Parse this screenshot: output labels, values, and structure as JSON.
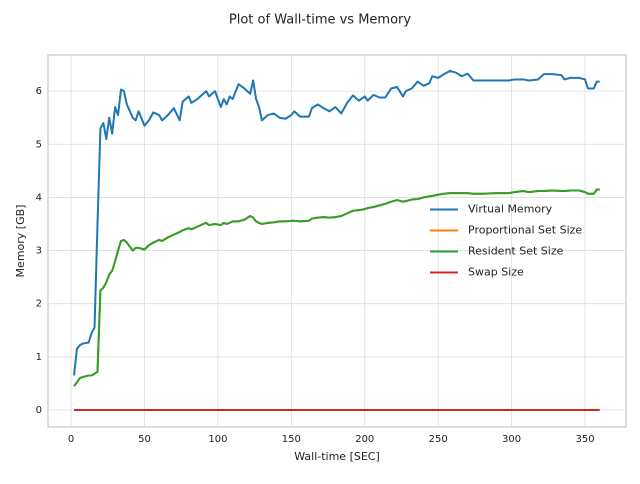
{
  "chart_data": {
    "type": "line",
    "title": "Plot of Wall-time vs Memory",
    "x_label": "Wall-time [SEC]",
    "y_label": "Memory [GB]",
    "x": [
      2,
      4,
      6,
      8,
      12,
      14,
      16,
      18,
      20,
      22,
      24,
      26,
      28,
      30,
      32,
      34,
      36,
      38,
      42,
      44,
      46,
      50,
      53,
      56,
      60,
      62,
      66,
      70,
      74,
      76,
      80,
      82,
      86,
      90,
      92,
      94,
      98,
      102,
      104,
      106,
      108,
      110,
      114,
      118,
      122,
      124,
      126,
      128,
      130,
      134,
      138,
      142,
      146,
      150,
      152,
      156,
      162,
      164,
      168,
      172,
      176,
      180,
      184,
      188,
      192,
      196,
      200,
      202,
      206,
      210,
      214,
      218,
      222,
      226,
      228,
      232,
      236,
      240,
      244,
      246,
      250,
      254,
      258,
      262,
      266,
      270,
      274,
      280,
      290,
      298,
      302,
      308,
      312,
      318,
      322,
      328,
      334,
      336,
      340,
      346,
      350,
      352,
      356,
      358,
      360
    ],
    "series": [
      {
        "name": "Virtual Memory",
        "color": "#1f77b4",
        "values": [
          0.65,
          1.15,
          1.22,
          1.25,
          1.27,
          1.45,
          1.55,
          3.5,
          5.3,
          5.4,
          5.1,
          5.5,
          5.2,
          5.7,
          5.55,
          6.03,
          6.0,
          5.75,
          5.5,
          5.45,
          5.62,
          5.35,
          5.45,
          5.6,
          5.55,
          5.45,
          5.55,
          5.68,
          5.45,
          5.8,
          5.9,
          5.78,
          5.85,
          5.95,
          6.0,
          5.9,
          6.0,
          5.7,
          5.85,
          5.75,
          5.9,
          5.85,
          6.13,
          6.05,
          5.95,
          6.2,
          5.85,
          5.7,
          5.45,
          5.55,
          5.58,
          5.5,
          5.48,
          5.55,
          5.62,
          5.52,
          5.52,
          5.68,
          5.75,
          5.68,
          5.62,
          5.7,
          5.58,
          5.78,
          5.92,
          5.82,
          5.9,
          5.82,
          5.93,
          5.88,
          5.88,
          6.05,
          6.08,
          5.9,
          6.0,
          6.05,
          6.18,
          6.1,
          6.15,
          6.28,
          6.25,
          6.32,
          6.38,
          6.35,
          6.28,
          6.33,
          6.2,
          6.2,
          6.2,
          6.2,
          6.22,
          6.22,
          6.2,
          6.22,
          6.32,
          6.32,
          6.3,
          6.22,
          6.25,
          6.25,
          6.22,
          6.05,
          6.05,
          6.18,
          6.18
        ]
      },
      {
        "name": "Proportional Set Size",
        "color": "#ff7f0e",
        "values": [
          0.45,
          0.52,
          0.6,
          0.62,
          0.65,
          0.65,
          0.68,
          0.72,
          2.25,
          2.3,
          2.4,
          2.55,
          2.62,
          2.8,
          3.0,
          3.18,
          3.2,
          3.15,
          3.0,
          3.05,
          3.05,
          3.02,
          3.1,
          3.15,
          3.2,
          3.18,
          3.25,
          3.3,
          3.35,
          3.38,
          3.42,
          3.4,
          3.45,
          3.5,
          3.52,
          3.48,
          3.5,
          3.48,
          3.52,
          3.5,
          3.52,
          3.55,
          3.55,
          3.58,
          3.65,
          3.62,
          3.55,
          3.52,
          3.5,
          3.52,
          3.53,
          3.55,
          3.55,
          3.56,
          3.56,
          3.55,
          3.56,
          3.6,
          3.62,
          3.63,
          3.62,
          3.63,
          3.65,
          3.7,
          3.75,
          3.76,
          3.78,
          3.8,
          3.82,
          3.85,
          3.88,
          3.92,
          3.95,
          3.92,
          3.93,
          3.96,
          3.97,
          4.0,
          4.02,
          4.03,
          4.05,
          4.07,
          4.08,
          4.08,
          4.08,
          4.08,
          4.07,
          4.07,
          4.08,
          4.08,
          4.1,
          4.12,
          4.1,
          4.12,
          4.12,
          4.13,
          4.12,
          4.12,
          4.13,
          4.13,
          4.1,
          4.07,
          4.07,
          4.15,
          4.15
        ]
      },
      {
        "name": "Resident Set Size",
        "color": "#2ca02c",
        "values": [
          0.45,
          0.52,
          0.6,
          0.62,
          0.65,
          0.65,
          0.68,
          0.72,
          2.25,
          2.3,
          2.4,
          2.55,
          2.62,
          2.8,
          3.0,
          3.18,
          3.2,
          3.15,
          3.0,
          3.05,
          3.05,
          3.02,
          3.1,
          3.15,
          3.2,
          3.18,
          3.25,
          3.3,
          3.35,
          3.38,
          3.42,
          3.4,
          3.45,
          3.5,
          3.52,
          3.48,
          3.5,
          3.48,
          3.52,
          3.5,
          3.52,
          3.55,
          3.55,
          3.58,
          3.65,
          3.62,
          3.55,
          3.52,
          3.5,
          3.52,
          3.53,
          3.55,
          3.55,
          3.56,
          3.56,
          3.55,
          3.56,
          3.6,
          3.62,
          3.63,
          3.62,
          3.63,
          3.65,
          3.7,
          3.75,
          3.76,
          3.78,
          3.8,
          3.82,
          3.85,
          3.88,
          3.92,
          3.95,
          3.92,
          3.93,
          3.96,
          3.97,
          4.0,
          4.02,
          4.03,
          4.05,
          4.07,
          4.08,
          4.08,
          4.08,
          4.08,
          4.07,
          4.07,
          4.08,
          4.08,
          4.1,
          4.12,
          4.1,
          4.12,
          4.12,
          4.13,
          4.12,
          4.12,
          4.13,
          4.13,
          4.1,
          4.07,
          4.07,
          4.15,
          4.15
        ]
      },
      {
        "name": "Swap Size",
        "color": "#d62728",
        "values": [
          0,
          0,
          0,
          0,
          0,
          0,
          0,
          0,
          0,
          0,
          0,
          0,
          0,
          0,
          0,
          0,
          0,
          0,
          0,
          0,
          0,
          0,
          0,
          0,
          0,
          0,
          0,
          0,
          0,
          0,
          0,
          0,
          0,
          0,
          0,
          0,
          0,
          0,
          0,
          0,
          0,
          0,
          0,
          0,
          0,
          0,
          0,
          0,
          0,
          0,
          0,
          0,
          0,
          0,
          0,
          0,
          0,
          0,
          0,
          0,
          0,
          0,
          0,
          0,
          0,
          0,
          0,
          0,
          0,
          0,
          0,
          0,
          0,
          0,
          0,
          0,
          0,
          0,
          0,
          0,
          0,
          0,
          0,
          0,
          0,
          0,
          0,
          0,
          0,
          0,
          0,
          0,
          0,
          0,
          0,
          0,
          0,
          0,
          0,
          0,
          0,
          0,
          0,
          0,
          0
        ]
      }
    ],
    "xlim": [
      -15.7,
      377.9
    ],
    "ylim": [
      -0.32,
      6.68
    ],
    "xticks": [
      0,
      50,
      100,
      150,
      200,
      250,
      300,
      350
    ],
    "yticks": [
      0,
      1,
      2,
      3,
      4,
      5,
      6
    ],
    "grid": true,
    "legend": "center right"
  }
}
